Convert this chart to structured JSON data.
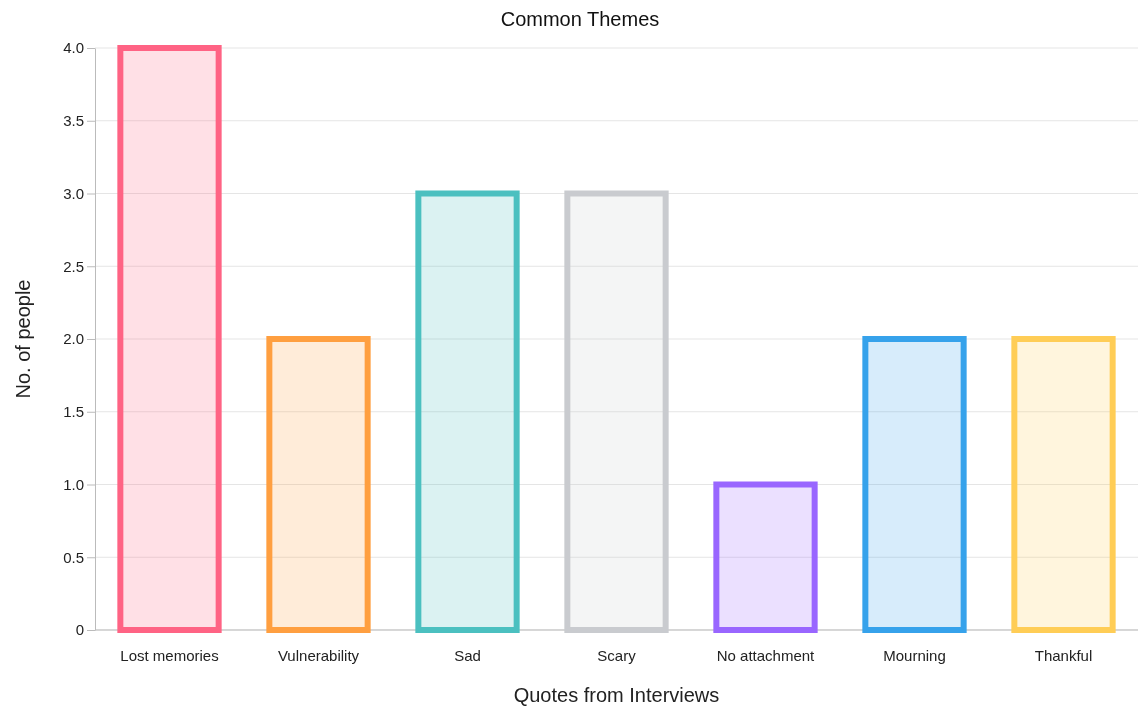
{
  "chart_data": {
    "type": "bar",
    "title": "Common Themes",
    "xlabel": "Quotes from Interviews",
    "ylabel": "No. of people",
    "categories": [
      "Lost memories",
      "Vulnerability",
      "Sad",
      "Scary",
      "No attachment",
      "Mourning",
      "Thankful"
    ],
    "values": [
      4,
      2,
      3,
      3,
      1,
      2,
      2
    ],
    "colors": [
      "#ff6384",
      "#ff9f40",
      "#4bc0c0",
      "#c9cbcf",
      "#9966ff",
      "#36a2eb",
      "#ffcd56"
    ],
    "ylim": [
      0,
      4
    ],
    "yticks": [
      0,
      {
        "value": 0.5,
        "label": "0.5"
      },
      {
        "value": 1,
        "label": "1.0"
      },
      {
        "value": 1.5,
        "label": "1.5"
      },
      {
        "value": 2,
        "label": "2.0"
      },
      {
        "value": 2.5,
        "label": "2.5"
      },
      {
        "value": 3,
        "label": "3.0"
      },
      {
        "value": 3.5,
        "label": "3.5"
      },
      {
        "value": 4,
        "label": "4.0"
      }
    ],
    "grid": "y"
  }
}
